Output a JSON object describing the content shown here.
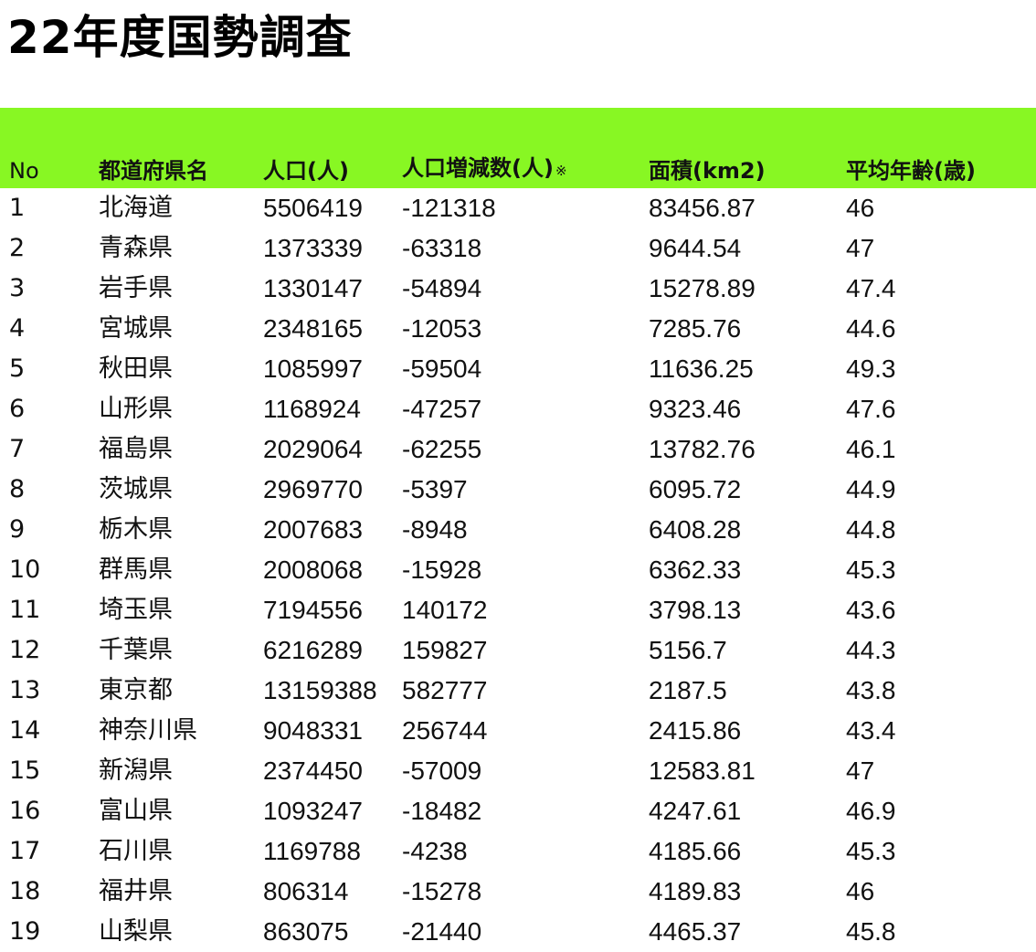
{
  "title": "22年度国勢調査",
  "table": {
    "header_bg": "#88f723",
    "headers": {
      "no": "No",
      "prefecture": "都道府県名",
      "population": "人口(人)",
      "change": "人口増減数(人)",
      "change_note": "※",
      "area": "面積(km2)",
      "avg_age": "平均年齢(歳)"
    },
    "rows": [
      {
        "no": "1",
        "prefecture": "北海道",
        "population": "5506419",
        "change": "-121318",
        "area": "83456.87",
        "avg_age": "46"
      },
      {
        "no": "2",
        "prefecture": "青森県",
        "population": "1373339",
        "change": "-63318",
        "area": "9644.54",
        "avg_age": "47"
      },
      {
        "no": "3",
        "prefecture": "岩手県",
        "population": "1330147",
        "change": "-54894",
        "area": "15278.89",
        "avg_age": "47.4"
      },
      {
        "no": "4",
        "prefecture": "宮城県",
        "population": "2348165",
        "change": "-12053",
        "area": "7285.76",
        "avg_age": "44.6"
      },
      {
        "no": "5",
        "prefecture": "秋田県",
        "population": "1085997",
        "change": "-59504",
        "area": "11636.25",
        "avg_age": "49.3"
      },
      {
        "no": "6",
        "prefecture": "山形県",
        "population": "1168924",
        "change": "-47257",
        "area": "9323.46",
        "avg_age": "47.6"
      },
      {
        "no": "7",
        "prefecture": "福島県",
        "population": "2029064",
        "change": "-62255",
        "area": "13782.76",
        "avg_age": "46.1"
      },
      {
        "no": "8",
        "prefecture": "茨城県",
        "population": "2969770",
        "change": "-5397",
        "area": "6095.72",
        "avg_age": "44.9"
      },
      {
        "no": "9",
        "prefecture": "栃木県",
        "population": "2007683",
        "change": "-8948",
        "area": "6408.28",
        "avg_age": "44.8"
      },
      {
        "no": "10",
        "prefecture": "群馬県",
        "population": "2008068",
        "change": "-15928",
        "area": "6362.33",
        "avg_age": "45.3"
      },
      {
        "no": "11",
        "prefecture": "埼玉県",
        "population": "7194556",
        "change": "140172",
        "area": "3798.13",
        "avg_age": "43.6"
      },
      {
        "no": "12",
        "prefecture": "千葉県",
        "population": "6216289",
        "change": "159827",
        "area": "5156.7",
        "avg_age": "44.3"
      },
      {
        "no": "13",
        "prefecture": "東京都",
        "population": "13159388",
        "change": "582777",
        "area": "2187.5",
        "avg_age": "43.8"
      },
      {
        "no": "14",
        "prefecture": "神奈川県",
        "population": "9048331",
        "change": "256744",
        "area": "2415.86",
        "avg_age": "43.4"
      },
      {
        "no": "15",
        "prefecture": "新潟県",
        "population": "2374450",
        "change": "-57009",
        "area": "12583.81",
        "avg_age": "47"
      },
      {
        "no": "16",
        "prefecture": "富山県",
        "population": "1093247",
        "change": "-18482",
        "area": "4247.61",
        "avg_age": "46.9"
      },
      {
        "no": "17",
        "prefecture": "石川県",
        "population": "1169788",
        "change": "-4238",
        "area": "4185.66",
        "avg_age": "45.3"
      },
      {
        "no": "18",
        "prefecture": "福井県",
        "population": "806314",
        "change": "-15278",
        "area": "4189.83",
        "avg_age": "46"
      },
      {
        "no": "19",
        "prefecture": "山梨県",
        "population": "863075",
        "change": "-21440",
        "area": "4465.37",
        "avg_age": "45.8"
      }
    ]
  }
}
